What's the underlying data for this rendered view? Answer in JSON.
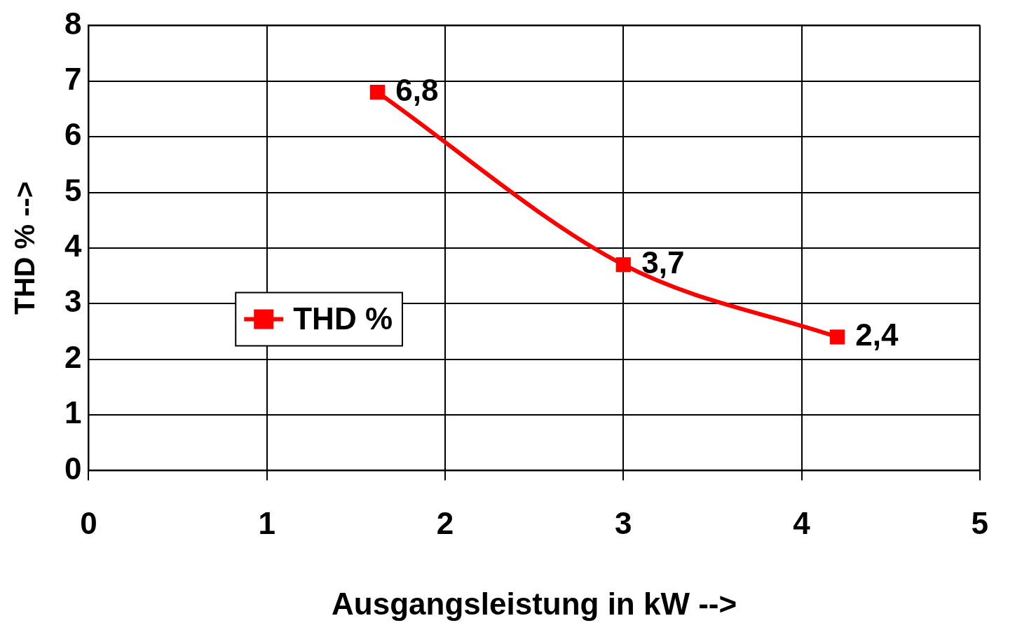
{
  "chart_data": {
    "type": "line",
    "xlabel": "Ausgangsleistung in kW -->",
    "ylabel": "THD % -->",
    "xlim": [
      0,
      5
    ],
    "xticks": [
      0,
      1,
      2,
      3,
      4,
      5
    ],
    "ylim": [
      0,
      8
    ],
    "yticks": [
      0,
      1,
      2,
      3,
      4,
      5,
      6,
      7,
      8
    ],
    "series": [
      {
        "name": "THD %",
        "color": "#ff0000",
        "x": [
          1.62,
          3.0,
          4.2
        ],
        "values": [
          6.8,
          3.7,
          2.4
        ],
        "value_labels": [
          "6,8",
          "3,7",
          "2,4"
        ]
      }
    ],
    "grid": true,
    "legend": "left",
    "marker": "square",
    "line_style": "solid"
  }
}
